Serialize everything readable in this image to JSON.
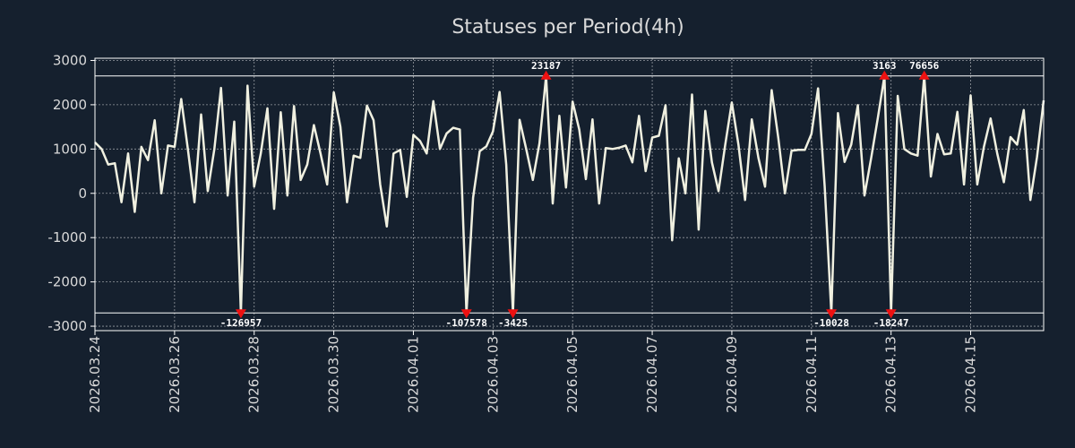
{
  "chart_data": {
    "type": "line",
    "title": "Statuses per Period(4h)",
    "xlabel": "",
    "ylabel": "",
    "ylim": [
      -3100,
      3050
    ],
    "yticks": [
      3000,
      2000,
      1000,
      0,
      -1000,
      -2000,
      -3000
    ],
    "ytick_labels": [
      "3000",
      "2000",
      "1000",
      "0",
      "-1000",
      "-2000",
      "-3000"
    ],
    "xticks": [
      {
        "index": 0,
        "label": "2026.03.24"
      },
      {
        "index": 12,
        "label": "2026.03.26"
      },
      {
        "index": 24,
        "label": "2026.03.28"
      },
      {
        "index": 36,
        "label": "2026.03.30"
      },
      {
        "index": 48,
        "label": "2026.04.01"
      },
      {
        "index": 60,
        "label": "2026.04.03"
      },
      {
        "index": 72,
        "label": "2026.04.05"
      },
      {
        "index": 84,
        "label": "2026.04.07"
      },
      {
        "index": 96,
        "label": "2026.04.09"
      },
      {
        "index": 108,
        "label": "2026.04.11"
      },
      {
        "index": 120,
        "label": "2026.04.13"
      },
      {
        "index": 132,
        "label": "2026.04.15"
      }
    ],
    "clip_levels": {
      "upper": 2650,
      "lower": -2700
    },
    "series": [
      {
        "name": "Statuses",
        "color": "#f0f0e0",
        "values": [
          1150,
          1000,
          650,
          680,
          -200,
          900,
          -420,
          1050,
          750,
          1650,
          0,
          1080,
          1050,
          2130,
          1000,
          -200,
          1780,
          50,
          1000,
          2380,
          -50,
          1620,
          -2700,
          2430,
          150,
          900,
          1920,
          -350,
          1830,
          -50,
          1970,
          300,
          650,
          1540,
          900,
          200,
          2280,
          1500,
          -200,
          850,
          800,
          1980,
          1650,
          200,
          -750,
          900,
          980,
          -80,
          1320,
          1180,
          900,
          2080,
          1000,
          1350,
          1480,
          1440,
          -2700,
          -100,
          950,
          1060,
          1400,
          2290,
          650,
          -2700,
          1660,
          1000,
          300,
          1130,
          2650,
          -230,
          1750,
          130,
          2070,
          1440,
          320,
          1670,
          -230,
          1020,
          1000,
          1030,
          1080,
          700,
          1750,
          500,
          1260,
          1300,
          1990,
          -1060,
          790,
          0,
          2230,
          -820,
          1860,
          700,
          50,
          1090,
          2050,
          1100,
          -150,
          1670,
          800,
          150,
          2330,
          1250,
          0,
          960,
          980,
          980,
          1340,
          2370,
          150,
          -2700,
          1810,
          710,
          1100,
          1990,
          -50,
          800,
          1700,
          2650,
          -2700,
          2200,
          1000,
          900,
          850,
          2650,
          380,
          1340,
          880,
          900,
          1840,
          200,
          2210,
          200,
          1050,
          1690,
          900,
          250,
          1270,
          1100,
          1880,
          -150,
          820,
          2100
        ]
      }
    ],
    "annotations": [
      {
        "label": "-126957",
        "index": 22,
        "value": -2700,
        "position": "below"
      },
      {
        "label": "-107578",
        "index": 56,
        "value": -2700,
        "position": "below"
      },
      {
        "label": "-3425",
        "index": 63,
        "value": -2700,
        "position": "below"
      },
      {
        "label": "23187",
        "index": 68,
        "value": 2650,
        "position": "above"
      },
      {
        "label": "-10028",
        "index": 111,
        "value": -2700,
        "position": "below"
      },
      {
        "label": "3163",
        "index": 119,
        "value": 2650,
        "position": "above"
      },
      {
        "label": "-18247",
        "index": 120,
        "value": -2700,
        "position": "below"
      },
      {
        "label": "76656",
        "index": 125,
        "value": 2650,
        "position": "above"
      }
    ],
    "grid": true,
    "legend": "none",
    "marker_color": "#ee1111"
  }
}
